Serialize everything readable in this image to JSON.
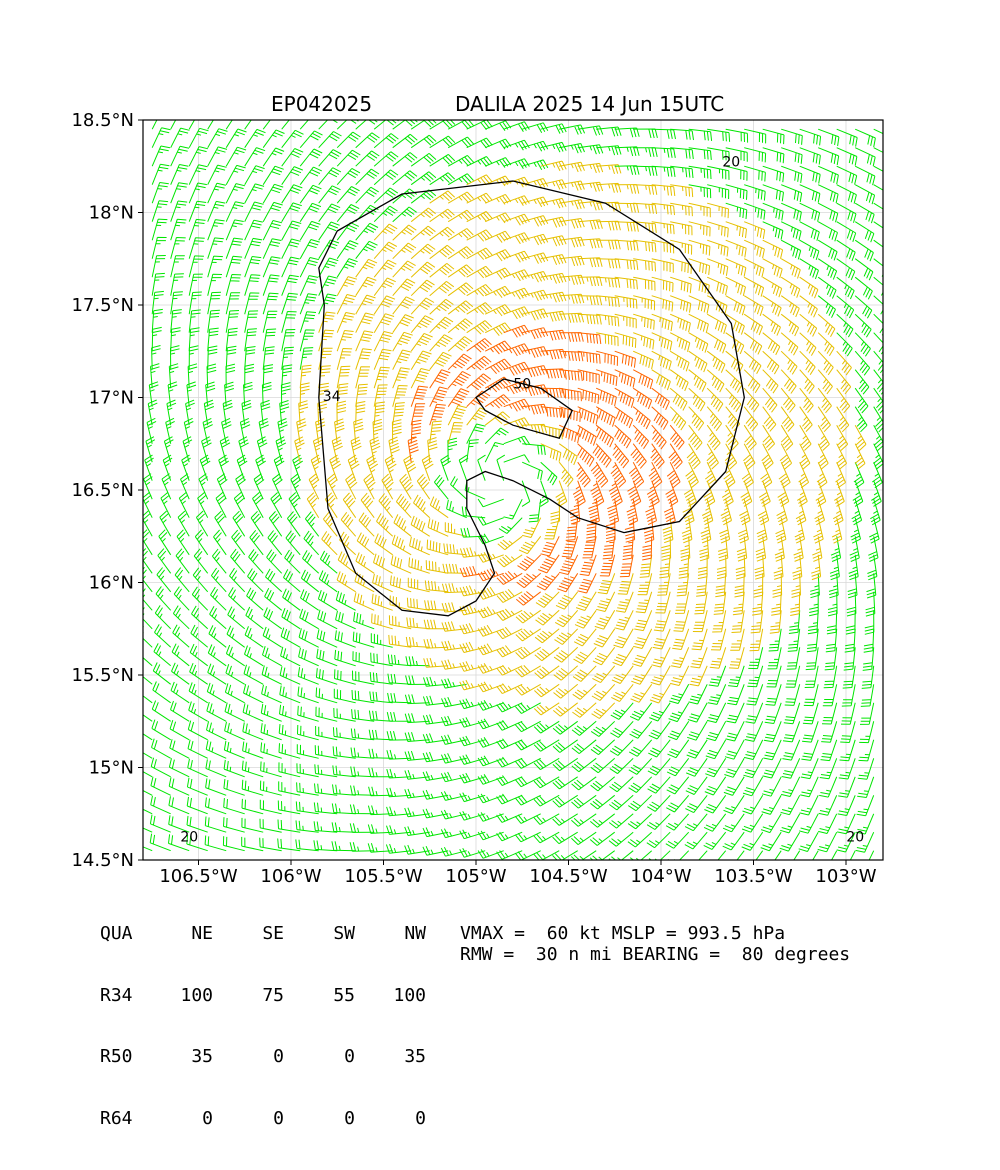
{
  "title": {
    "storm_id": "EP042025",
    "storm_info": "DALILA 2025 14 Jun 15UTC"
  },
  "chart_data": {
    "type": "wind-barb-map",
    "x_range": [
      -106.8,
      -102.8
    ],
    "y_range": [
      14.5,
      18.5
    ],
    "x_ticks": [
      "106.5°W",
      "106°W",
      "105.5°W",
      "105°W",
      "104.5°W",
      "104°W",
      "103.5°W",
      "103°W"
    ],
    "y_ticks": [
      "14.5°N",
      "15°N",
      "15.5°N",
      "16°N",
      "16.5°N",
      "17°N",
      "17.5°N",
      "18°N",
      "18.5°N"
    ],
    "center": [
      -104.85,
      16.55
    ],
    "vmax_kt": 60,
    "contour_labels": [
      "50",
      "34",
      "20",
      "20",
      "20"
    ],
    "colors": {
      "below_34kt": "#00e600",
      "34_to_50kt": "#e6c000",
      "above_50kt": "#ff6600",
      "contour": "#000000",
      "land_contour": "#808080"
    },
    "grid": true
  },
  "radii_table": {
    "header": [
      "QUA",
      "NE",
      "SE",
      "SW",
      "NW"
    ],
    "rows": [
      [
        "R34",
        "100",
        "75",
        "55",
        "100"
      ],
      [
        "R50",
        "35",
        "0",
        "0",
        "35"
      ],
      [
        "R64",
        "0",
        "0",
        "0",
        "0"
      ]
    ]
  },
  "info": {
    "line1": "VMAX =  60 kt MSLP = 993.5 hPa",
    "line2": "RMW =  30 n mi BEARING =  80 degrees"
  }
}
